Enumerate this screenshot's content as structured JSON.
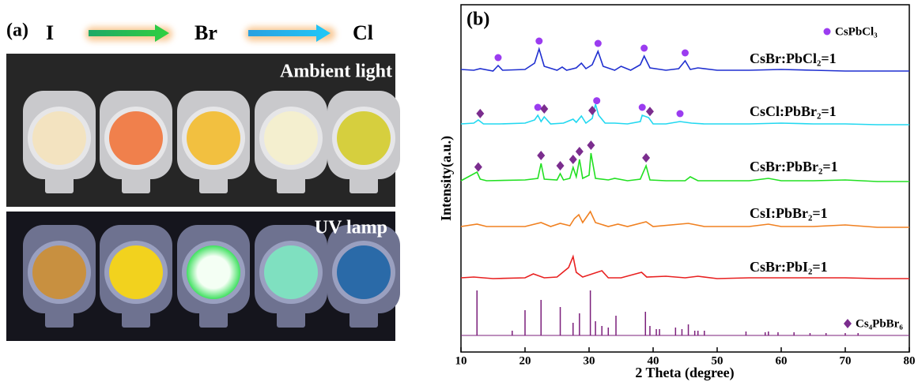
{
  "panel_a": {
    "label": "(a)",
    "sequence": [
      "I",
      "Br",
      "Cl"
    ],
    "photos": [
      {
        "caption": "Ambient light"
      },
      {
        "caption": "UV lamp"
      }
    ]
  },
  "chart_data": {
    "type": "line",
    "panel_label": "(b)",
    "x_label": "2 Theta (degree)",
    "y_label": "Intensity(a.u.)",
    "xlim": [
      10,
      80
    ],
    "xticks": [
      10,
      20,
      30,
      40,
      50,
      60,
      70,
      80
    ],
    "legend": [
      {
        "name": "CsPbCl₃",
        "marker": "circle",
        "color": "#9b3cf0"
      },
      {
        "name": "Cs₄PbBr₆",
        "marker": "diamond",
        "color": "#7b2d8e"
      }
    ],
    "series": [
      {
        "name": "CsBr:PbCl₂=1",
        "color": "#1f2fd0",
        "x": [
          10,
          12,
          13,
          15,
          15.8,
          16.5,
          20,
          21.5,
          22.2,
          23,
          25,
          25.8,
          26.5,
          28,
          28.8,
          29.5,
          30.5,
          31.4,
          32.2,
          34,
          35,
          36.5,
          38,
          38.6,
          39.5,
          42,
          44,
          45,
          45.8,
          47,
          50,
          55,
          60,
          65,
          70,
          75,
          80
        ],
        "values": [
          4,
          3,
          5,
          2,
          9,
          3,
          4,
          12,
          30,
          8,
          3,
          7,
          3,
          6,
          12,
          5,
          10,
          27,
          8,
          3,
          8,
          3,
          10,
          21,
          6,
          3,
          5,
          15,
          4,
          6,
          3,
          3,
          4,
          3,
          2,
          2,
          2
        ],
        "circle_x": [
          15.8,
          22.2,
          31.4,
          38.6,
          45
        ],
        "diamond_x": []
      },
      {
        "name": "CsCl:PbBr₂=1",
        "color": "#22d8f0",
        "x": [
          10,
          12,
          12.7,
          13.5,
          16,
          20,
          21.5,
          22,
          22.5,
          23,
          24,
          26,
          27.5,
          28,
          28.8,
          29.5,
          30.5,
          31,
          31.5,
          32.5,
          34,
          36,
          38,
          38.3,
          39.3,
          40,
          42,
          44.2,
          46,
          48,
          50,
          55,
          60,
          65,
          70,
          75,
          80
        ],
        "values": [
          3,
          4,
          8,
          3,
          3,
          4,
          8,
          14,
          6,
          12,
          3,
          4,
          9,
          5,
          13,
          4,
          10,
          28,
          14,
          4,
          4,
          3,
          6,
          14,
          11,
          3,
          3,
          6,
          4,
          3,
          3,
          3,
          4,
          3,
          3,
          2,
          2
        ],
        "circle_x": [
          22,
          31.2,
          38.3,
          44.2
        ],
        "diamond_x": [
          13,
          23,
          30.5,
          39.5
        ]
      },
      {
        "name": "CsBr:PbBr₂=1",
        "color": "#22e022",
        "x": [
          10,
          12.5,
          13,
          14,
          20,
          22,
          22.5,
          23,
          25,
          25.5,
          26,
          27,
          27.5,
          28,
          28.5,
          29,
          30,
          30.3,
          31,
          33,
          34,
          36,
          38,
          38.9,
          39.5,
          42,
          45,
          45.8,
          47,
          50,
          55,
          58,
          60,
          65,
          70,
          75,
          80
        ],
        "values": [
          3,
          14,
          5,
          3,
          4,
          6,
          25,
          5,
          4,
          12,
          4,
          6,
          20,
          8,
          30,
          6,
          10,
          38,
          6,
          4,
          6,
          3,
          5,
          22,
          4,
          3,
          3,
          8,
          3,
          3,
          3,
          6,
          3,
          3,
          4,
          2,
          2
        ],
        "circle_x": [],
        "diamond_x": [
          12.7,
          22.5,
          25.5,
          27.5,
          28.5,
          30.3,
          38.9
        ]
      },
      {
        "name": "CsI:PbBr₂=1",
        "color": "#f08020",
        "x": [
          10,
          12.5,
          14,
          20,
          22.5,
          24,
          25.5,
          27,
          27.7,
          28.4,
          29,
          30.2,
          31,
          33,
          34.5,
          36,
          38.9,
          40,
          45.5,
          48,
          55,
          58,
          60,
          65,
          70,
          75,
          80
        ],
        "values": [
          3,
          6,
          3,
          3,
          8,
          3,
          7,
          4,
          13,
          18,
          8,
          22,
          8,
          3,
          6,
          3,
          9,
          3,
          7,
          3,
          3,
          6,
          3,
          3,
          5,
          2,
          2
        ],
        "circle_x": [],
        "diamond_x": []
      },
      {
        "name": "CsBr:PbI₂=1",
        "color": "#e82020",
        "x": [
          10,
          12,
          15,
          20,
          21.3,
          23,
          25,
          26.2,
          26.8,
          27.5,
          28,
          29,
          32,
          33,
          35,
          38.2,
          39,
          42,
          45,
          47,
          50,
          55,
          60,
          65,
          70,
          75,
          80
        ],
        "values": [
          3,
          4,
          2,
          3,
          8,
          3,
          4,
          12,
          16,
          30,
          10,
          4,
          12,
          3,
          3,
          10,
          4,
          5,
          3,
          5,
          2,
          3,
          3,
          3,
          3,
          2,
          2
        ],
        "circle_x": [],
        "diamond_x": []
      }
    ],
    "reference": {
      "color": "#7b1f7b",
      "x": [
        12.5,
        18,
        20,
        22.5,
        25.5,
        27.5,
        28.5,
        30.2,
        31,
        32,
        33,
        34.2,
        38.8,
        39.5,
        40.5,
        41,
        43.5,
        44.5,
        45.5,
        46.5,
        47,
        48,
        54.5,
        57.5,
        58,
        59.5,
        62,
        64.5,
        67,
        70,
        72
      ],
      "values": [
        57,
        6,
        32,
        45,
        36,
        16,
        28,
        57,
        18,
        12,
        10,
        25,
        30,
        12,
        8,
        8,
        10,
        8,
        14,
        6,
        6,
        6,
        5,
        4,
        5,
        4,
        4,
        3,
        3,
        3,
        3
      ]
    }
  }
}
